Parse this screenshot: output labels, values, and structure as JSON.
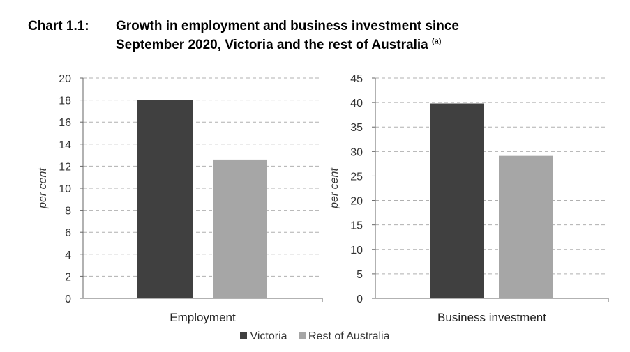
{
  "title": {
    "number": "Chart 1.1:",
    "line1": "Growth in employment and business investment since",
    "line2": "September 2020, Victoria and the rest of Australia",
    "note": "(a)"
  },
  "colors": {
    "victoria": "#404040",
    "rest": "#a6a6a6",
    "grid": "#b0b0b0",
    "axis": "#666666"
  },
  "chart_data": [
    {
      "type": "bar",
      "categories": [
        "Employment"
      ],
      "series": [
        {
          "name": "Victoria",
          "values": [
            18.0
          ]
        },
        {
          "name": "Rest of Australia",
          "values": [
            12.6
          ]
        }
      ],
      "ylabel": "per cent",
      "ylim": [
        0,
        20
      ],
      "yticks": [
        "0",
        "2",
        "4",
        "6",
        "8",
        "10",
        "12",
        "14",
        "16",
        "18",
        "20"
      ],
      "grid": true
    },
    {
      "type": "bar",
      "categories": [
        "Business investment"
      ],
      "series": [
        {
          "name": "Victoria",
          "values": [
            39.8
          ]
        },
        {
          "name": "Rest of Australia",
          "values": [
            29.1
          ]
        }
      ],
      "ylabel": "per cent",
      "ylim": [
        0,
        45
      ],
      "yticks": [
        "0",
        "5",
        "10",
        "15",
        "20",
        "25",
        "30",
        "35",
        "40",
        "45"
      ],
      "grid": true
    }
  ],
  "legend": {
    "items": [
      "Victoria",
      "Rest of Australia"
    ],
    "position": "bottom"
  }
}
